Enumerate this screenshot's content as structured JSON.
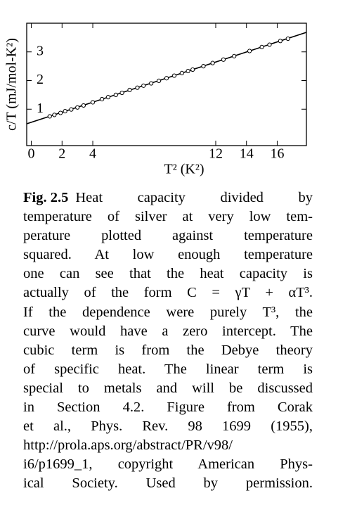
{
  "chart_data": {
    "type": "scatter",
    "xlabel": "T² (K²)",
    "ylabel": "c/T (mJ/mol-K²)",
    "xlim": [
      -0.3,
      17.9
    ],
    "ylim": [
      -0.27,
      4.0
    ],
    "xticks": [
      0,
      2,
      4,
      12,
      14,
      16
    ],
    "yticks": [
      1,
      2,
      3
    ],
    "color": "#000000",
    "x": [
      1.2,
      1.5,
      1.9,
      2.2,
      2.6,
      3.0,
      3.4,
      4.0,
      4.6,
      5.0,
      5.5,
      5.9,
      6.4,
      6.9,
      7.3,
      7.8,
      8.3,
      8.8,
      9.3,
      9.8,
      10.2,
      10.5,
      11.2,
      11.8,
      12.5,
      13.2,
      14.2,
      15.0,
      15.5,
      16.2,
      16.7
    ],
    "values": [
      0.75,
      0.8,
      0.87,
      0.93,
      0.99,
      1.06,
      1.13,
      1.24,
      1.35,
      1.42,
      1.5,
      1.57,
      1.67,
      1.75,
      1.82,
      1.9,
      1.99,
      2.08,
      2.17,
      2.26,
      2.33,
      2.38,
      2.5,
      2.61,
      2.73,
      2.85,
      3.03,
      3.17,
      3.25,
      3.38,
      3.46
    ],
    "fit_line": {
      "x": [
        -0.3,
        17.9
      ],
      "values": [
        0.49,
        3.68
      ]
    }
  },
  "caption": {
    "label": "Fig. 2.5",
    "lines": [
      "Heat capacity divided by",
      "temperature of silver at very low tem-",
      "perature plotted against temperature",
      "squared.  At low enough temperature",
      "one can see that the heat capacity is",
      "actually of the form C = γT + αT³.",
      "If the dependence were purely T³, the",
      "curve would have a zero intercept. The",
      "cubic term is from the Debye theory",
      "of specific heat.  The linear term is",
      "special to metals and will be discussed",
      "in Section 4.2.  Figure from Corak",
      "et al., Phys. Rev. 98 1699 (1955),",
      "http://prola.aps.org/abstract/PR/v98/",
      "i6/p1699_1, copyright American Phys-",
      "ical Society.  Used by permission."
    ]
  }
}
